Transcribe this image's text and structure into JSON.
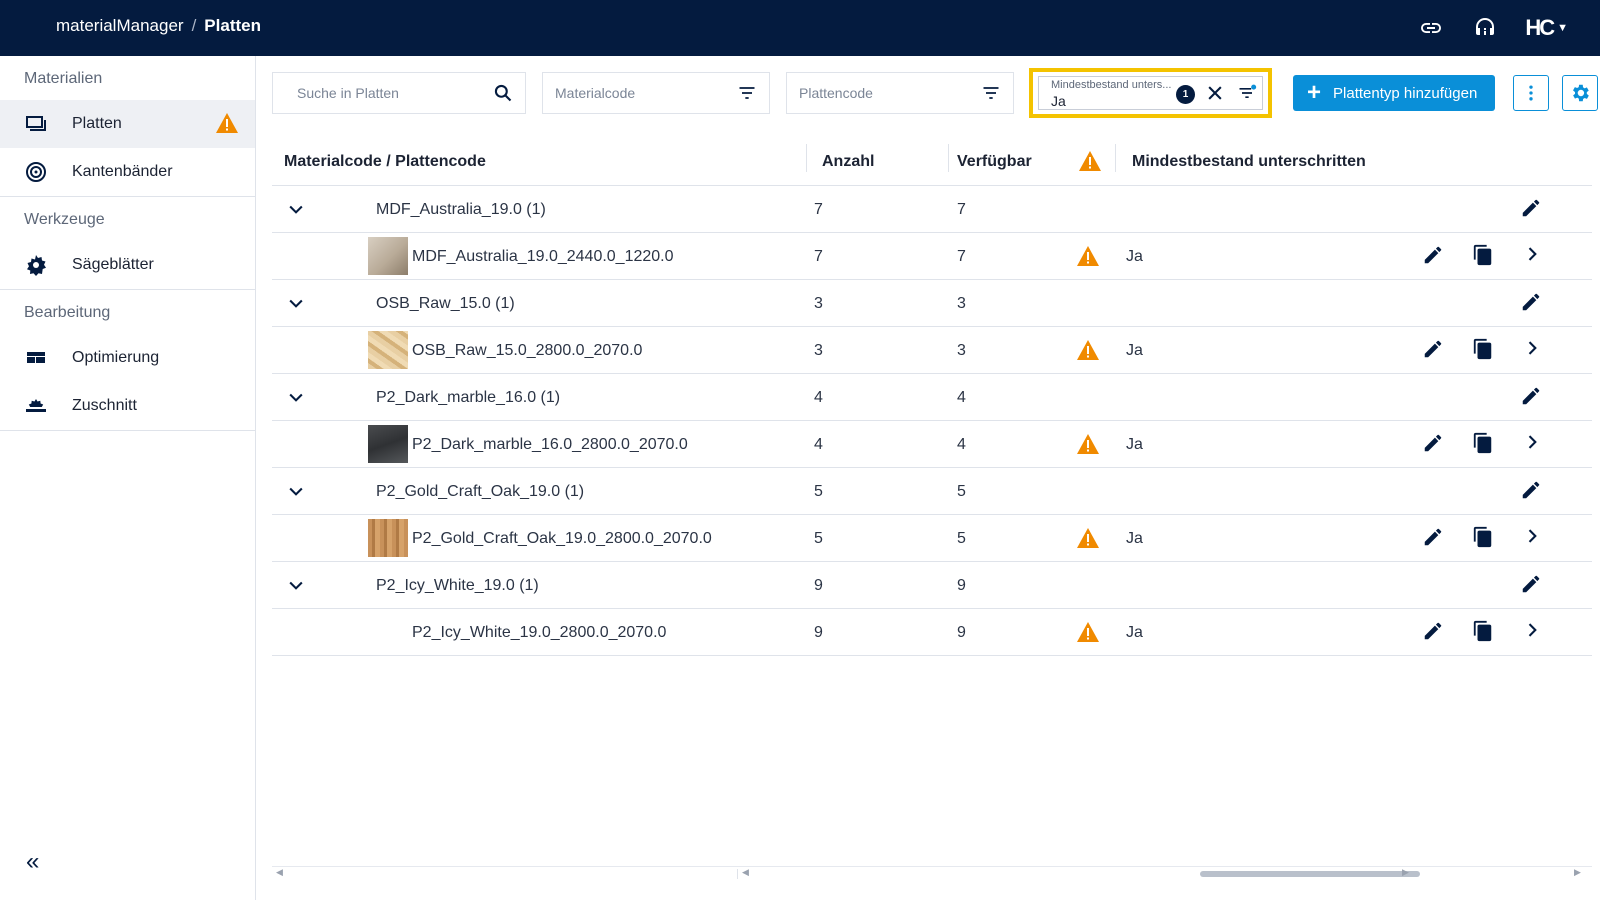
{
  "header": {
    "app_name": "materialManager",
    "separator": "/",
    "current_page": "Platten",
    "logo_text": "HC"
  },
  "sidebar": {
    "sections": [
      {
        "heading": "Materialien",
        "items": [
          {
            "label": "Platten",
            "icon": "sheet-icon",
            "active": true,
            "warning": true
          },
          {
            "label": "Kantenbänder",
            "icon": "edgeband-roll-icon"
          }
        ]
      },
      {
        "heading": "Werkzeuge",
        "items": [
          {
            "label": "Sägeblätter",
            "icon": "saw-blade-icon"
          }
        ]
      },
      {
        "heading": "Bearbeitung",
        "items": [
          {
            "label": "Optimierung",
            "icon": "layout-grid-icon"
          },
          {
            "label": "Zuschnitt",
            "icon": "cutting-icon"
          }
        ]
      }
    ],
    "collapse_symbol": "«"
  },
  "toolbar": {
    "search_placeholder": "Suche in Platten",
    "materialcode_placeholder": "Materialcode",
    "plattencode_placeholder": "Plattencode",
    "mindestbestand_label": "Mindestbestand unters...",
    "mindestbestand_value": "Ja",
    "filter_count": "1",
    "add_button_label": "Plattentyp hinzufügen"
  },
  "table": {
    "headers": {
      "code": "Materialcode / Plattencode",
      "anzahl": "Anzahl",
      "verfuegbar": "Verfügbar",
      "mindest": "Mindestbestand unterschritten"
    },
    "groups": [
      {
        "name": "MDF_Australia_19.0 (1)",
        "anzahl": "7",
        "verfuegbar": "7",
        "child": {
          "name": "MDF_Australia_19.0_2440.0_1220.0",
          "anzahl": "7",
          "verfuegbar": "7",
          "mindest": "Ja",
          "thumb": "mdf"
        }
      },
      {
        "name": "OSB_Raw_15.0 (1)",
        "anzahl": "3",
        "verfuegbar": "3",
        "child": {
          "name": "OSB_Raw_15.0_2800.0_2070.0",
          "anzahl": "3",
          "verfuegbar": "3",
          "mindest": "Ja",
          "thumb": "osb"
        }
      },
      {
        "name": "P2_Dark_marble_16.0 (1)",
        "anzahl": "4",
        "verfuegbar": "4",
        "child": {
          "name": "P2_Dark_marble_16.0_2800.0_2070.0",
          "anzahl": "4",
          "verfuegbar": "4",
          "mindest": "Ja",
          "thumb": "marble"
        }
      },
      {
        "name": "P2_Gold_Craft_Oak_19.0 (1)",
        "anzahl": "5",
        "verfuegbar": "5",
        "child": {
          "name": "P2_Gold_Craft_Oak_19.0_2800.0_2070.0",
          "anzahl": "5",
          "verfuegbar": "5",
          "mindest": "Ja",
          "thumb": "oak"
        }
      },
      {
        "name": "P2_Icy_White_19.0 (1)",
        "anzahl": "9",
        "verfuegbar": "9",
        "child": {
          "name": "P2_Icy_White_19.0_2800.0_2070.0",
          "anzahl": "9",
          "verfuegbar": "9",
          "mindest": "Ja",
          "thumb": "none"
        }
      }
    ]
  },
  "colors": {
    "header_bg": "#041b3f",
    "accent": "#0a8fd8",
    "warning": "#f08a00",
    "highlight": "#f4c300"
  }
}
